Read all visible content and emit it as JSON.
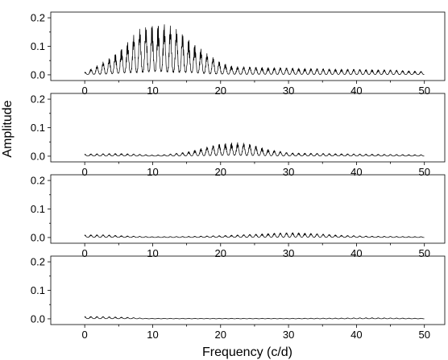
{
  "chart_data": {
    "type": "line",
    "xlabel": "Frequency (c/d)",
    "ylabel": "Amplitude",
    "xlim": [
      -5,
      53
    ],
    "x_ticks": [
      0,
      10,
      20,
      30,
      40,
      50
    ],
    "x_tick_labels": [
      "0",
      "10",
      "20",
      "30",
      "40",
      "50"
    ],
    "grid": false,
    "panels": [
      {
        "ylim": [
          -0.02,
          0.22
        ],
        "y_ticks": [
          0.0,
          0.1,
          0.2
        ],
        "y_tick_labels": [
          "0.0",
          "0.1",
          "0.2"
        ],
        "x_ticks_labeled": true,
        "envelope": {
          "x": [
            0,
            2,
            4,
            6,
            8,
            10,
            11,
            12,
            14,
            16,
            18,
            20,
            22,
            25,
            30,
            35,
            40,
            45,
            50
          ],
          "y": [
            0.01,
            0.035,
            0.065,
            0.11,
            0.16,
            0.183,
            0.185,
            0.18,
            0.155,
            0.115,
            0.075,
            0.045,
            0.03,
            0.028,
            0.025,
            0.022,
            0.02,
            0.018,
            0.012
          ]
        }
      },
      {
        "ylim": [
          -0.02,
          0.22
        ],
        "y_ticks": [
          0.0,
          0.1,
          0.2
        ],
        "y_tick_labels": [
          "0.0",
          "0.1",
          "0.2"
        ],
        "x_ticks_labeled": true,
        "envelope": {
          "x": [
            0,
            5,
            8,
            10,
            12,
            15,
            18,
            20,
            22,
            24,
            27,
            30,
            35,
            40,
            50
          ],
          "y": [
            0.008,
            0.01,
            0.007,
            0.004,
            0.006,
            0.015,
            0.033,
            0.045,
            0.05,
            0.045,
            0.025,
            0.012,
            0.01,
            0.008,
            0.005
          ]
        }
      },
      {
        "ylim": [
          -0.02,
          0.22
        ],
        "y_ticks": [
          0.0,
          0.1,
          0.2
        ],
        "y_tick_labels": [
          "0.0",
          "0.1",
          "0.2"
        ],
        "x_ticks_labeled": true,
        "envelope": {
          "x": [
            0,
            3,
            6,
            10,
            15,
            20,
            25,
            28,
            31,
            34,
            38,
            42,
            50
          ],
          "y": [
            0.01,
            0.01,
            0.006,
            0.003,
            0.004,
            0.007,
            0.012,
            0.016,
            0.018,
            0.014,
            0.008,
            0.005,
            0.003
          ]
        }
      },
      {
        "ylim": [
          -0.02,
          0.22
        ],
        "y_ticks": [
          0.0,
          0.1,
          0.2
        ],
        "y_tick_labels": [
          "0.0",
          "0.1",
          "0.2"
        ],
        "x_ticks_labeled": true,
        "envelope": {
          "x": [
            0,
            3,
            6,
            9,
            12,
            20,
            30,
            38,
            42,
            46,
            50
          ],
          "y": [
            0.009,
            0.008,
            0.006,
            0.002,
            0.002,
            0.002,
            0.002,
            0.003,
            0.004,
            0.003,
            0.002
          ]
        }
      }
    ]
  }
}
